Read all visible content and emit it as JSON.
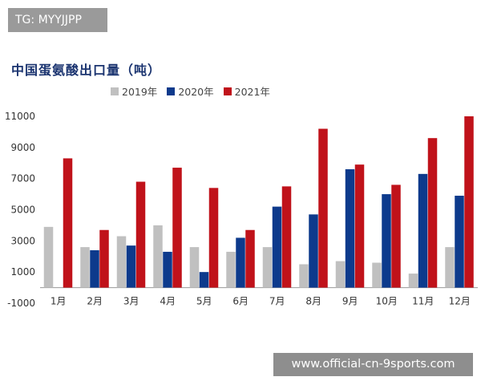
{
  "tag_text": "TG: MYYJJPP",
  "watermark_text": "www.official-cn-9sports.com",
  "chart_data": {
    "type": "bar",
    "title": "中国蛋氨酸出口量（吨）",
    "categories": [
      "1月",
      "2月",
      "3月",
      "4月",
      "5月",
      "6月",
      "7月",
      "8月",
      "9月",
      "10月",
      "11月",
      "12月"
    ],
    "series": [
      {
        "name": "2019年",
        "color": "#c0c0c0",
        "values": [
          3900,
          2600,
          3300,
          4000,
          2600,
          2300,
          2600,
          1500,
          1700,
          1600,
          900,
          2600
        ]
      },
      {
        "name": "2020年",
        "color": "#0d3a8c",
        "values": [
          0,
          2400,
          2700,
          2300,
          1000,
          3200,
          5200,
          4700,
          7600,
          6000,
          7300,
          5900
        ]
      },
      {
        "name": "2021年",
        "color": "#c0121a",
        "values": [
          8300,
          3700,
          6800,
          7700,
          6400,
          3700,
          6500,
          10200,
          7900,
          6600,
          9600,
          11000
        ]
      }
    ],
    "y_ticks": [
      "11000",
      "9000",
      "7000",
      "5000",
      "3000",
      "1000",
      "-1000"
    ],
    "ylim": [
      -1000,
      11000
    ],
    "legend_position": "top",
    "grid": false
  }
}
